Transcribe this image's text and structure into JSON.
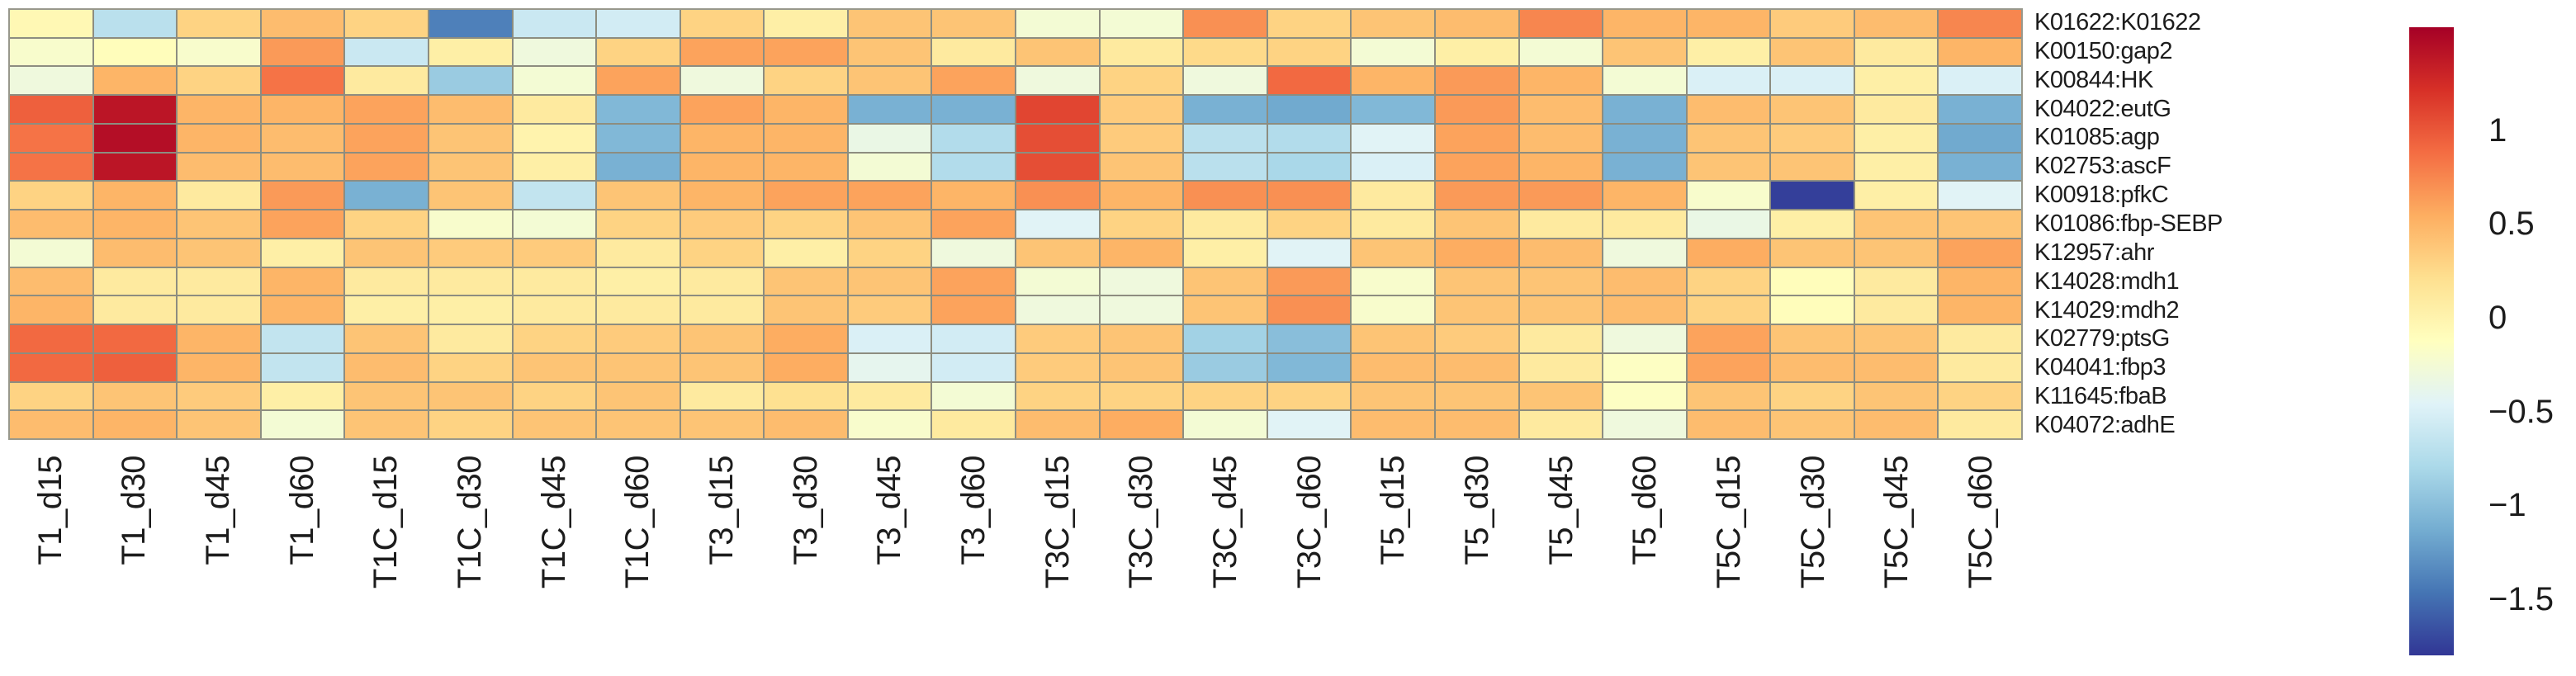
{
  "figure_title": "",
  "chart_data": {
    "type": "heatmap",
    "title": "",
    "xlabel": "",
    "ylabel": "",
    "grid": true,
    "grid_line_color": "#8d8d80",
    "legend_position": "right",
    "rows": [
      "K01622:K01622",
      "K00150:gap2",
      "K00844:HK",
      "K04022:eutG",
      "K01085:agp",
      "K02753:ascF",
      "K00918:pfkC",
      "K01086:fbp-SEBP",
      "K12957:ahr",
      "K14028:mdh1",
      "K14029:mdh2",
      "K02779:ptsG",
      "K04041:fbp3",
      "K11645:fbaB",
      "K04072:adhE"
    ],
    "columns": [
      "T1_d15",
      "T1_d30",
      "T1_d45",
      "T1_d60",
      "T1C_d15",
      "T1C_d30",
      "T1C_d45",
      "T1C_d60",
      "T3_d15",
      "T3_d30",
      "T3_d45",
      "T3_d60",
      "T3C_d15",
      "T3C_d30",
      "T3C_d45",
      "T3C_d60",
      "T5_d15",
      "T5_d30",
      "T5_d45",
      "T5_d60",
      "T5C_d15",
      "T5C_d30",
      "T5C_d45",
      "T5C_d60"
    ],
    "values": [
      [
        -0.05,
        -0.7,
        0.3,
        0.45,
        0.3,
        -1.4,
        -0.6,
        -0.55,
        0.3,
        0.05,
        0.4,
        0.4,
        -0.25,
        -0.25,
        0.7,
        0.3,
        0.4,
        0.45,
        0.75,
        0.5,
        0.5,
        0.35,
        0.45,
        0.75
      ],
      [
        -0.2,
        -0.1,
        -0.2,
        0.65,
        -0.6,
        0.05,
        -0.3,
        0.3,
        0.6,
        0.6,
        0.4,
        0.1,
        0.4,
        0.1,
        0.25,
        0.3,
        -0.25,
        0.05,
        -0.25,
        0.4,
        0.05,
        0.4,
        0.1,
        0.5
      ],
      [
        -0.3,
        0.5,
        0.3,
        0.85,
        0.1,
        -0.9,
        -0.25,
        0.6,
        -0.3,
        0.3,
        0.4,
        0.6,
        -0.3,
        0.3,
        -0.3,
        0.9,
        0.5,
        0.65,
        0.5,
        -0.25,
        -0.5,
        -0.5,
        0.05,
        -0.5
      ],
      [
        0.95,
        1.4,
        0.5,
        0.5,
        0.6,
        0.45,
        0.1,
        -1.05,
        0.6,
        0.5,
        -1.1,
        -1.1,
        1.1,
        0.35,
        -1.1,
        -1.15,
        -1.05,
        0.65,
        0.45,
        -1.1,
        0.45,
        0.4,
        0.1,
        -1.1
      ],
      [
        0.85,
        1.45,
        0.5,
        0.45,
        0.6,
        0.4,
        0,
        -1.05,
        0.5,
        0.5,
        -0.35,
        -0.75,
        1.05,
        0.35,
        -0.7,
        -0.75,
        -0.45,
        0.6,
        0.45,
        -1.1,
        0.4,
        0.35,
        0.05,
        -1.15
      ],
      [
        0.85,
        1.4,
        0.45,
        0.45,
        0.6,
        0.4,
        0.05,
        -1.1,
        0.5,
        0.5,
        -0.25,
        -0.75,
        1.05,
        0.4,
        -0.7,
        -0.8,
        -0.5,
        0.6,
        0.5,
        -1.1,
        0.4,
        0.4,
        0.05,
        -1.1
      ],
      [
        0.3,
        0.5,
        0.1,
        0.65,
        -1.1,
        0.4,
        -0.65,
        0.4,
        0.5,
        0.6,
        0.6,
        0.5,
        0.7,
        0.5,
        0.7,
        0.7,
        0.1,
        0.65,
        0.65,
        0.5,
        -0.2,
        -1.75,
        0.05,
        -0.45
      ],
      [
        0.45,
        0.5,
        0.4,
        0.6,
        0.3,
        -0.2,
        -0.25,
        0.3,
        0.35,
        0.3,
        0.4,
        0.6,
        -0.45,
        0.3,
        0.1,
        0.3,
        0.1,
        0.4,
        0.1,
        0.1,
        -0.35,
        0.05,
        0.4,
        0.4
      ],
      [
        -0.25,
        0.45,
        0.4,
        0.05,
        0.4,
        0.35,
        0.35,
        0.1,
        0.3,
        0.05,
        0.3,
        -0.3,
        0.4,
        0.5,
        0.05,
        -0.45,
        0.4,
        0.55,
        0.45,
        -0.3,
        0.55,
        0.4,
        0.4,
        0.6
      ],
      [
        0.45,
        0.1,
        0.1,
        0.5,
        0.1,
        0.1,
        0.1,
        0.05,
        0.1,
        0.4,
        0.4,
        0.6,
        -0.25,
        -0.3,
        0.4,
        0.65,
        -0.2,
        0.4,
        0.4,
        0.45,
        0.3,
        -0.1,
        0.1,
        0.5
      ],
      [
        0.5,
        0.1,
        0.1,
        0.5,
        0.05,
        0.05,
        0.1,
        0.1,
        0.1,
        0.4,
        0.35,
        0.6,
        -0.3,
        -0.3,
        0.4,
        0.7,
        -0.2,
        0.4,
        0.4,
        0.45,
        0.3,
        -0.1,
        0.1,
        0.5
      ],
      [
        0.9,
        0.9,
        0.5,
        -0.65,
        0.4,
        0.1,
        0.3,
        0.35,
        0.4,
        0.55,
        -0.5,
        -0.55,
        0.35,
        0.4,
        -0.85,
        -1.0,
        0.4,
        0.35,
        0.1,
        -0.3,
        0.6,
        0.4,
        0.4,
        0.1
      ],
      [
        0.9,
        0.95,
        0.5,
        -0.65,
        0.45,
        0.3,
        0.4,
        0.4,
        0.4,
        0.55,
        -0.4,
        -0.55,
        0.35,
        0.4,
        -0.9,
        -1.05,
        0.45,
        0.45,
        0.1,
        -0.15,
        0.6,
        0.45,
        0.45,
        0.1
      ],
      [
        0.3,
        0.4,
        0.35,
        0.05,
        0.4,
        0.4,
        0.3,
        0.4,
        0.1,
        0.2,
        0.1,
        -0.25,
        0.3,
        0.3,
        0.3,
        0.3,
        0.4,
        0.4,
        0.4,
        -0.15,
        0.4,
        0.3,
        0.4,
        0.3
      ],
      [
        0.45,
        0.5,
        0.4,
        -0.25,
        0.4,
        0.3,
        0.4,
        0.4,
        0.4,
        0.45,
        -0.2,
        0.1,
        0.45,
        0.55,
        -0.25,
        -0.45,
        0.45,
        0.45,
        0.1,
        -0.3,
        0.45,
        0.4,
        0.45,
        0.1
      ]
    ],
    "colorbar": {
      "vmin": -1.8,
      "vmax": 1.55,
      "ticks": [
        {
          "label": "1",
          "value": 1
        },
        {
          "label": "0.5",
          "value": 0.5
        },
        {
          "label": "0",
          "value": 0
        },
        {
          "label": "−0.5",
          "value": -0.5
        },
        {
          "label": "−1",
          "value": -1
        },
        {
          "label": "−1.5",
          "value": -1.5
        }
      ]
    },
    "palette": {
      "name": "RdYlBu_r",
      "low_to_high_stops": [
        "#313695",
        "#4575b4",
        "#74add1",
        "#abd9e9",
        "#e0f3f8",
        "#ffffbf",
        "#fee090",
        "#fdae61",
        "#f46d43",
        "#d73027",
        "#a50026"
      ]
    }
  }
}
